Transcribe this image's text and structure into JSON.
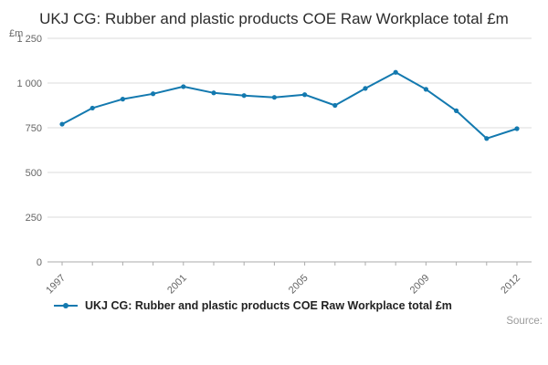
{
  "title": "UKJ CG: Rubber and plastic products COE Raw Workplace total £m",
  "ylabel": "£m",
  "legend": {
    "label": "UKJ CG: Rubber and plastic products COE Raw Workplace total £m"
  },
  "source_label": "Source:",
  "colors": {
    "line": "#1379AF",
    "grid": "#DBDBDB",
    "axis": "#ABABAB",
    "tick_text": "#666666"
  },
  "chart_data": {
    "type": "line",
    "x": [
      1997,
      1998,
      1999,
      2000,
      2001,
      2002,
      2003,
      2004,
      2005,
      2006,
      2007,
      2008,
      2009,
      2010,
      2011,
      2012
    ],
    "series": [
      {
        "name": "UKJ CG: Rubber and plastic products COE Raw Workplace total £m",
        "values": [
          770,
          860,
          910,
          940,
          980,
          945,
          930,
          920,
          935,
          875,
          970,
          1060,
          965,
          845,
          690,
          745
        ]
      }
    ],
    "title": "UKJ CG: Rubber and plastic products COE Raw Workplace total £m",
    "xlabel": "",
    "ylabel": "£m",
    "ylim": [
      0,
      1250
    ],
    "yticks": [
      {
        "value": 0,
        "label": "0"
      },
      {
        "value": 250,
        "label": "250"
      },
      {
        "value": 500,
        "label": "500"
      },
      {
        "value": 750,
        "label": "750"
      },
      {
        "value": 1000,
        "label": "1 000"
      },
      {
        "value": 1250,
        "label": "1 250"
      }
    ],
    "xticks_shown": [
      1997,
      2001,
      2005,
      2009,
      2012
    ],
    "grid": true,
    "legend_position": "bottom"
  }
}
